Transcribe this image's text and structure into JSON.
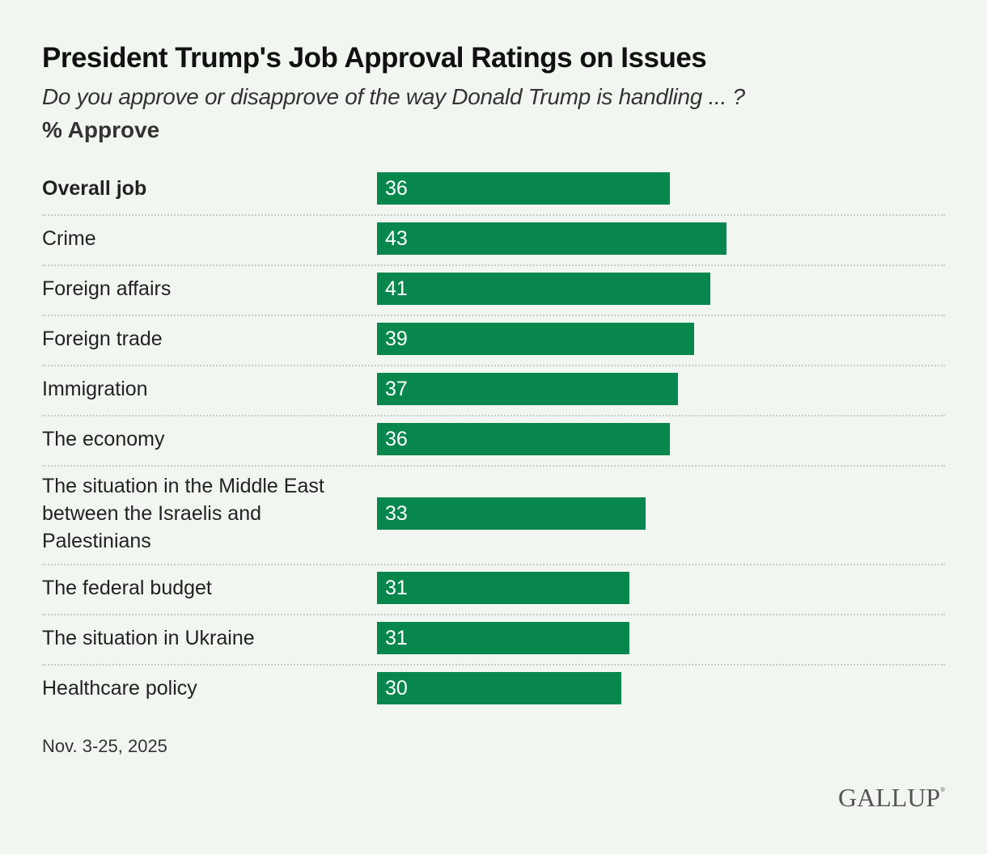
{
  "header": {
    "title": "President Trump's Job Approval Ratings on Issues",
    "subtitle": "Do you approve or disapprove of the way Donald Trump is handling ... ?",
    "measure": "% Approve"
  },
  "footer": {
    "date": "Nov. 3-25, 2025",
    "logo": "GALLUP",
    "logo_mark": "®"
  },
  "colors": {
    "bar": "#07874d",
    "background": "#f1f7f0"
  },
  "chart_data": {
    "type": "bar",
    "orientation": "horizontal",
    "title": "President Trump's Job Approval Ratings on Issues",
    "subtitle": "Do you approve or disapprove of the way Donald Trump is handling ... ?",
    "ylabel": "% Approve",
    "xlim": [
      0,
      70
    ],
    "categories": [
      "Overall job",
      "Crime",
      "Foreign affairs",
      "Foreign trade",
      "Immigration",
      "The economy",
      "The situation in the Middle East between the Israelis and Palestinians",
      "The federal budget",
      "The situation in Ukraine",
      "Healthcare policy"
    ],
    "values": [
      36,
      43,
      41,
      39,
      37,
      36,
      33,
      31,
      31,
      30
    ],
    "bold_categories": [
      "Overall job"
    ],
    "grid": false,
    "data_labels": true
  }
}
